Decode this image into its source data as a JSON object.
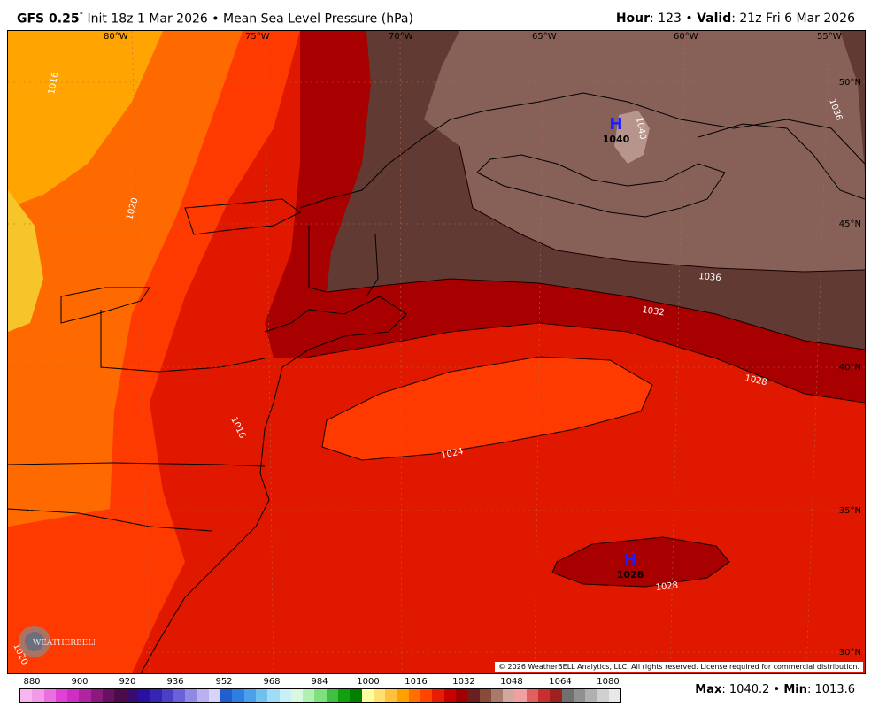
{
  "header": {
    "model": "GFS 0.25",
    "degree": "°",
    "init": "Init 18z 1 Mar 2026",
    "sep": "•",
    "field": "Mean Sea Level Pressure (hPa)",
    "hour_label": "Hour",
    "hour_value": ": 123",
    "valid_label": "Valid",
    "valid_value": ": 21z Fri 6 Mar 2026"
  },
  "map": {
    "longitude_labels": [
      "80°W",
      "75°W",
      "70°W",
      "65°W",
      "60°W",
      "55°W"
    ],
    "latitude_labels": [
      "50°N",
      "45°N",
      "40°N",
      "35°N",
      "30°N"
    ],
    "isobar_labels": [
      "1016",
      "1020",
      "1024",
      "1028",
      "1032",
      "1036",
      "1040",
      "1028",
      "1016",
      "1020",
      "1036"
    ],
    "high_centers": [
      {
        "symbol": "H",
        "value": "1040"
      },
      {
        "symbol": "H",
        "value": "1028"
      }
    ],
    "credit": "© 2026 WeatherBELL Analytics, LLC. All rights reserved. License required for commercial distribution.",
    "logo_text": "WEATHERBELL"
  },
  "legend": {
    "tick_labels": [
      "880",
      "900",
      "920",
      "936",
      "952",
      "968",
      "984",
      "1000",
      "1016",
      "1032",
      "1048",
      "1064",
      "1080"
    ],
    "colors": [
      "#f7b6f0",
      "#f29ae8",
      "#ec6fe0",
      "#e040d4",
      "#cf2ec0",
      "#b0259f",
      "#8c1a7e",
      "#6a1060",
      "#4a0c4d",
      "#3a0a70",
      "#2a10a0",
      "#3525b5",
      "#4a40c8",
      "#6a60d8",
      "#8f88e5",
      "#b8b0ef",
      "#d8d4f7",
      "#1f5fd0",
      "#2f7fe0",
      "#4aa0ea",
      "#70c0f0",
      "#a0dcf5",
      "#c8f0f8",
      "#d8f8e0",
      "#b0f0b0",
      "#80e080",
      "#40c040",
      "#10a010",
      "#008000",
      "#ffffa0",
      "#ffe070",
      "#ffc040",
      "#ffa000",
      "#ff7000",
      "#ff4500",
      "#e81c00",
      "#c80000",
      "#a00000",
      "#6a2020",
      "#8a4a3a",
      "#a87a6a",
      "#d0a8a0",
      "#f0a0a0",
      "#e06060",
      "#c83030",
      "#a02020",
      "#707070",
      "#909090",
      "#b0b0b0",
      "#d0d0d0",
      "#e8e8e8"
    ],
    "colors_meta": "pressure shading colors",
    "max_label": "Max",
    "max_value": ": 1040.2",
    "min_label": "Min",
    "min_value": ": 1013.6"
  },
  "palette": {
    "p1016": "#ffa400",
    "p1020": "#ff6a00",
    "p1024": "#ff3a00",
    "p1028": "#e01800",
    "p1032": "#a80000",
    "p1036": "#613b33",
    "p1040": "#876158",
    "p1044": "#b7948c"
  }
}
